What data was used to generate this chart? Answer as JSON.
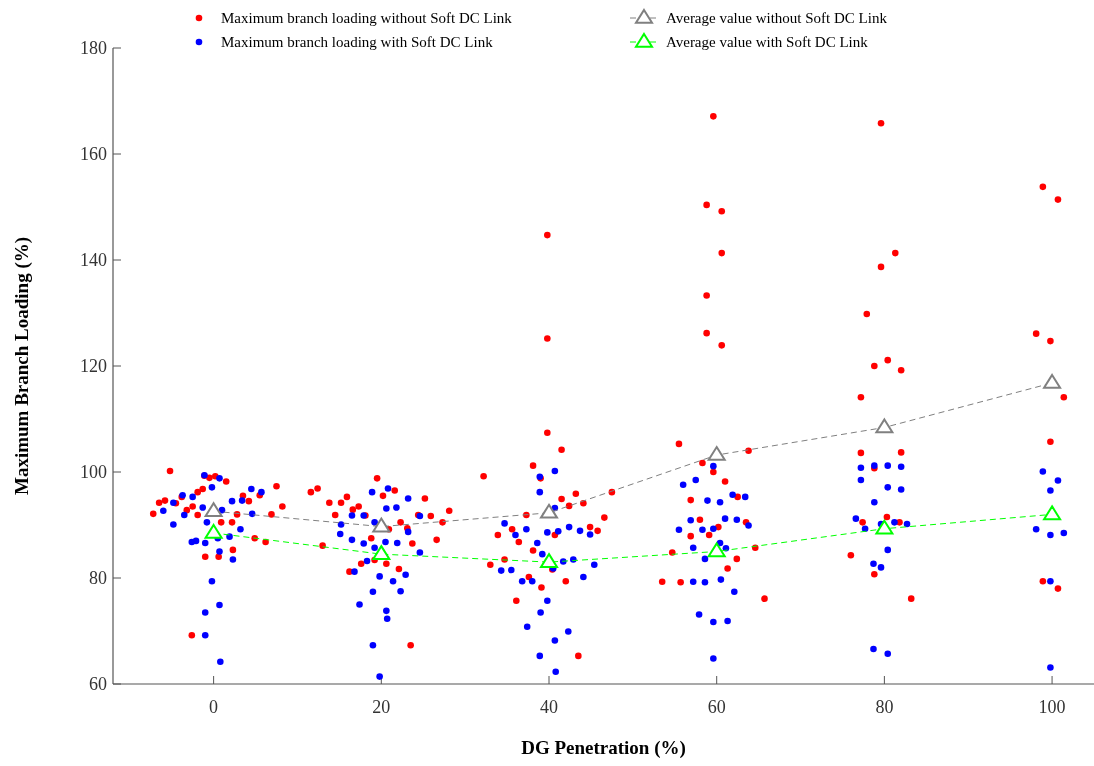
{
  "chart_data": {
    "type": "scatter",
    "xlabel": "DG Penetration (%)",
    "ylabel": "Maximum Branch Loading (%)",
    "xlim": [
      -12,
      105
    ],
    "ylim": [
      60,
      180
    ],
    "xticks": [
      0,
      20,
      40,
      60,
      80,
      100
    ],
    "yticks": [
      60,
      80,
      100,
      120,
      140,
      160,
      180
    ],
    "grid": false,
    "legend": "top",
    "marker": "circle",
    "series": [
      {
        "name": "Maximum branch loading without Soft DC Link",
        "color": "#ff0000",
        "x": [
          -5.2,
          -1.1,
          -0.5,
          0.2,
          1.5,
          -1.3,
          -1.9,
          -3.8,
          -6.5,
          -5.8,
          -4.5,
          -2.5,
          -3.2,
          -7.2,
          -1.9,
          7.5,
          3.5,
          4.2,
          5.5,
          8.2,
          2.8,
          6.9,
          0.9,
          2.2,
          4.9,
          6.2,
          2.3,
          -1,
          0.6,
          -2.6,
          19.5,
          11.6,
          12.4,
          21.6,
          20.2,
          15.9,
          25.2,
          13.8,
          15.2,
          17.3,
          16.6,
          28.1,
          14.5,
          18.1,
          24.4,
          25.9,
          27.3,
          22.3,
          20.9,
          23.1,
          18.8,
          23.7,
          26.6,
          13,
          17.6,
          19.2,
          20.6,
          16.2,
          22.1,
          23.5,
          39.8,
          39.8,
          39.8,
          41.5,
          38.1,
          32.2,
          39,
          47.5,
          43.2,
          41.5,
          42.4,
          44.1,
          37.3,
          46.6,
          33.9,
          35.6,
          40.7,
          44.9,
          45.8,
          36.4,
          38.1,
          33,
          34.7,
          40.4,
          37.6,
          42,
          39.1,
          36.1,
          43.5,
          59.6,
          58.8,
          60.6,
          60.6,
          58.8,
          58.8,
          60.6,
          55.5,
          63.8,
          58.3,
          59.6,
          61,
          56.9,
          62.5,
          58,
          63.5,
          60.2,
          56.9,
          59.1,
          54.7,
          64.6,
          62.4,
          61.3,
          53.5,
          55.7,
          65.7,
          79.6,
          81.3,
          79.6,
          77.9,
          78.8,
          80.4,
          82,
          77.2,
          77.2,
          82,
          78.8,
          77.4,
          80.3,
          81.8,
          76,
          78.8,
          83.2,
          98.9,
          100.7,
          98.1,
          99.8,
          101.4,
          99.8,
          98.9,
          100.7
        ],
        "values": [
          100.2,
          99.3,
          98.9,
          99.2,
          98.2,
          96.8,
          96.2,
          95.3,
          94.2,
          94.6,
          94.1,
          93.5,
          92.8,
          92.1,
          91.9,
          97.3,
          95.5,
          94.5,
          95.6,
          93.5,
          92,
          92,
          90.5,
          90.5,
          87.5,
          86.8,
          85.3,
          84,
          84,
          69.2,
          98.8,
          96.2,
          96.9,
          96.5,
          95.5,
          95.3,
          95,
          94.2,
          94.2,
          93.5,
          92.9,
          92.7,
          91.9,
          91.8,
          91.9,
          91.7,
          90.5,
          90.5,
          89.2,
          89.4,
          87.5,
          86.5,
          87.2,
          86.1,
          82.7,
          83.4,
          82.7,
          81.2,
          81.7,
          67.3,
          144.7,
          125.2,
          107.4,
          104.2,
          101.2,
          99.2,
          98.8,
          96.2,
          95.9,
          94.9,
          93.6,
          94.1,
          91.9,
          91.4,
          88.1,
          89.2,
          88.1,
          89.6,
          88.9,
          86.8,
          85.2,
          82.5,
          83.5,
          81.6,
          80.2,
          79.4,
          78.2,
          75.7,
          65.3,
          167.1,
          150.4,
          149.2,
          141.3,
          133.3,
          126.2,
          123.9,
          105.3,
          104,
          101.7,
          100,
          98.2,
          94.7,
          95.3,
          91,
          90.5,
          89.6,
          87.9,
          88.1,
          84.8,
          85.7,
          83.6,
          81.8,
          79.3,
          79.2,
          76.1,
          165.8,
          141.3,
          138.7,
          129.8,
          120,
          121.1,
          119.2,
          114.1,
          103.6,
          103.7,
          100.7,
          90.5,
          91.5,
          90.5,
          84.3,
          80.7,
          76.1,
          153.8,
          151.4,
          126.1,
          124.7,
          114.1,
          105.7,
          79.4,
          78
        ]
      },
      {
        "name": "Maximum branch loading with Soft DC Link",
        "color": "#0000ff",
        "x": [
          -1.1,
          0.7,
          -0.2,
          -3.7,
          -2.5,
          4.5,
          5.7,
          -4.8,
          -6,
          -3.5,
          -1.3,
          1,
          2.2,
          3.4,
          4.6,
          -4.8,
          -0.8,
          3.2,
          0.5,
          1.9,
          -2.6,
          -2.1,
          -1,
          0.7,
          2.3,
          -0.2,
          0.7,
          -1,
          -1,
          0.8,
          18.9,
          20.8,
          23.2,
          20.6,
          21.8,
          16.5,
          17.9,
          24.6,
          15.2,
          19.2,
          23.2,
          15.1,
          16.5,
          17.9,
          20.5,
          21.9,
          19.2,
          24.6,
          18.3,
          16.8,
          19.8,
          21.4,
          22.9,
          19,
          22.3,
          17.4,
          20.6,
          20.7,
          19,
          19.8,
          40.7,
          38.9,
          38.9,
          40.7,
          34.7,
          37.3,
          42.4,
          43.7,
          36,
          39.8,
          41.1,
          44.9,
          38.6,
          39.2,
          41.7,
          42.9,
          45.4,
          40.5,
          34.3,
          35.5,
          36.8,
          38,
          44.1,
          39.8,
          39,
          37.4,
          42.3,
          40.7,
          38.9,
          40.8,
          59.6,
          57.5,
          56,
          58.9,
          60.4,
          61.9,
          63.4,
          56.9,
          61,
          62.4,
          63.8,
          55.5,
          58.3,
          59.6,
          60.4,
          57.2,
          61.1,
          58.6,
          57.2,
          58.6,
          60.5,
          62.1,
          57.9,
          59.6,
          61.3,
          59.6,
          77.2,
          78.8,
          80.4,
          82,
          77.2,
          80.4,
          82,
          78.8,
          76.6,
          77.7,
          79.6,
          81.2,
          82.7,
          80.4,
          78.7,
          79.6,
          78.7,
          80.4,
          98.9,
          100.7,
          99.8,
          98.1,
          99.8,
          101.4,
          99.8,
          99.8
        ],
        "values": [
          99.4,
          98.8,
          97.1,
          95.6,
          95.3,
          96.8,
          96.2,
          94.2,
          92.7,
          91.9,
          93.3,
          92.8,
          94.5,
          94.6,
          92.1,
          90.1,
          90.5,
          89.2,
          87.5,
          87.8,
          86.8,
          87,
          86.6,
          85,
          83.5,
          79.4,
          74.9,
          73.5,
          69.2,
          64.2,
          96.2,
          96.9,
          95,
          93.1,
          93.3,
          91.8,
          91.8,
          91.7,
          90.1,
          90.5,
          88.7,
          88.3,
          87.2,
          86.5,
          86.8,
          86.6,
          85.7,
          84.8,
          83.2,
          81.2,
          80.3,
          79.4,
          80.6,
          77.4,
          77.5,
          75,
          73.8,
          72.3,
          67.3,
          61.4,
          100.2,
          99.1,
          96.2,
          93.2,
          90.3,
          89.2,
          89.6,
          88.9,
          88.1,
          88.6,
          88.8,
          88.2,
          86.6,
          84.5,
          83.1,
          83.5,
          82.5,
          81.8,
          81.4,
          81.5,
          79.4,
          79.4,
          80.2,
          75.7,
          73.5,
          70.8,
          69.9,
          68.2,
          65.3,
          62.3,
          101.1,
          98.5,
          97.6,
          94.6,
          94.3,
          95.7,
          95.3,
          90.9,
          91.2,
          91,
          89.9,
          89.1,
          89.1,
          89.3,
          86.6,
          85.7,
          85.6,
          83.6,
          79.3,
          79.2,
          79.7,
          77.4,
          73.1,
          71.7,
          71.9,
          64.8,
          100.8,
          101.2,
          101.2,
          101,
          98.5,
          97.1,
          96.7,
          94.3,
          91.2,
          89.3,
          90.2,
          90.5,
          90.2,
          85.3,
          82.7,
          82,
          66.6,
          65.7,
          100.1,
          98.4,
          96.5,
          89.2,
          88.1,
          88.5,
          79.4,
          63.1
        ]
      },
      {
        "name": "Average value without Soft DC Link",
        "type": "line",
        "color": "#808080",
        "marker": "triangle",
        "line_style": "dashed",
        "x": [
          0,
          20,
          40,
          60,
          80,
          100
        ],
        "values": [
          92.6,
          89.7,
          92.3,
          103.2,
          108.4,
          116.8
        ]
      },
      {
        "name": "Average value with Soft DC Link",
        "type": "line",
        "color": "#00ff00",
        "marker": "triangle",
        "line_style": "dashed",
        "x": [
          0,
          20,
          40,
          60,
          80,
          100
        ],
        "values": [
          88.5,
          84.5,
          83,
          85,
          89.3,
          92
        ]
      }
    ]
  }
}
